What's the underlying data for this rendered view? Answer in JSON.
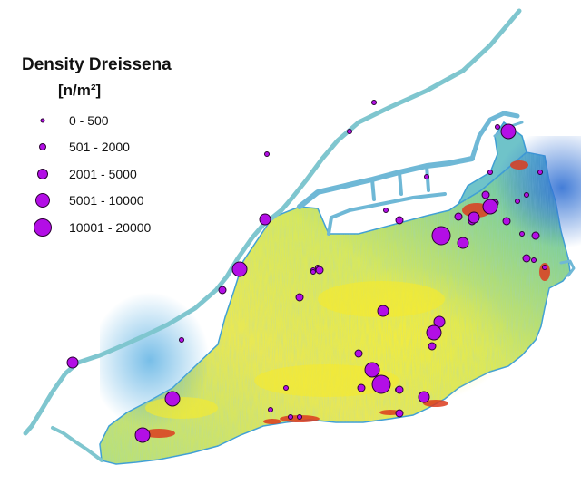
{
  "legend": {
    "title": "Density Dreissena",
    "unit": "[n/m²]",
    "classes": [
      {
        "label": "0 - 500",
        "size_rank": 1
      },
      {
        "label": "501 - 2000",
        "size_rank": 2
      },
      {
        "label": "2001 - 5000",
        "size_rank": 3
      },
      {
        "label": "5001 - 10000",
        "size_rank": 4
      },
      {
        "label": "10001 - 20000",
        "size_rank": 5
      }
    ]
  },
  "colors": {
    "marker_fill": "#b30ee6",
    "marker_stroke": "#2a0033",
    "lake_high": "#f0e63c",
    "lake_mid": "#9fdc78",
    "lake_low": "#46aadc",
    "lake_deep": "#2d6ed2",
    "hotspot": "#dc3c1e"
  },
  "samples_by_class": [
    {
      "class": "0 - 500",
      "count": 24
    },
    {
      "class": "501 - 2000",
      "count": 17
    },
    {
      "class": "2001 - 5000",
      "count": 9
    },
    {
      "class": "5001 - 10000",
      "count": 7
    },
    {
      "class": "10001 - 20000",
      "count": 3
    }
  ]
}
